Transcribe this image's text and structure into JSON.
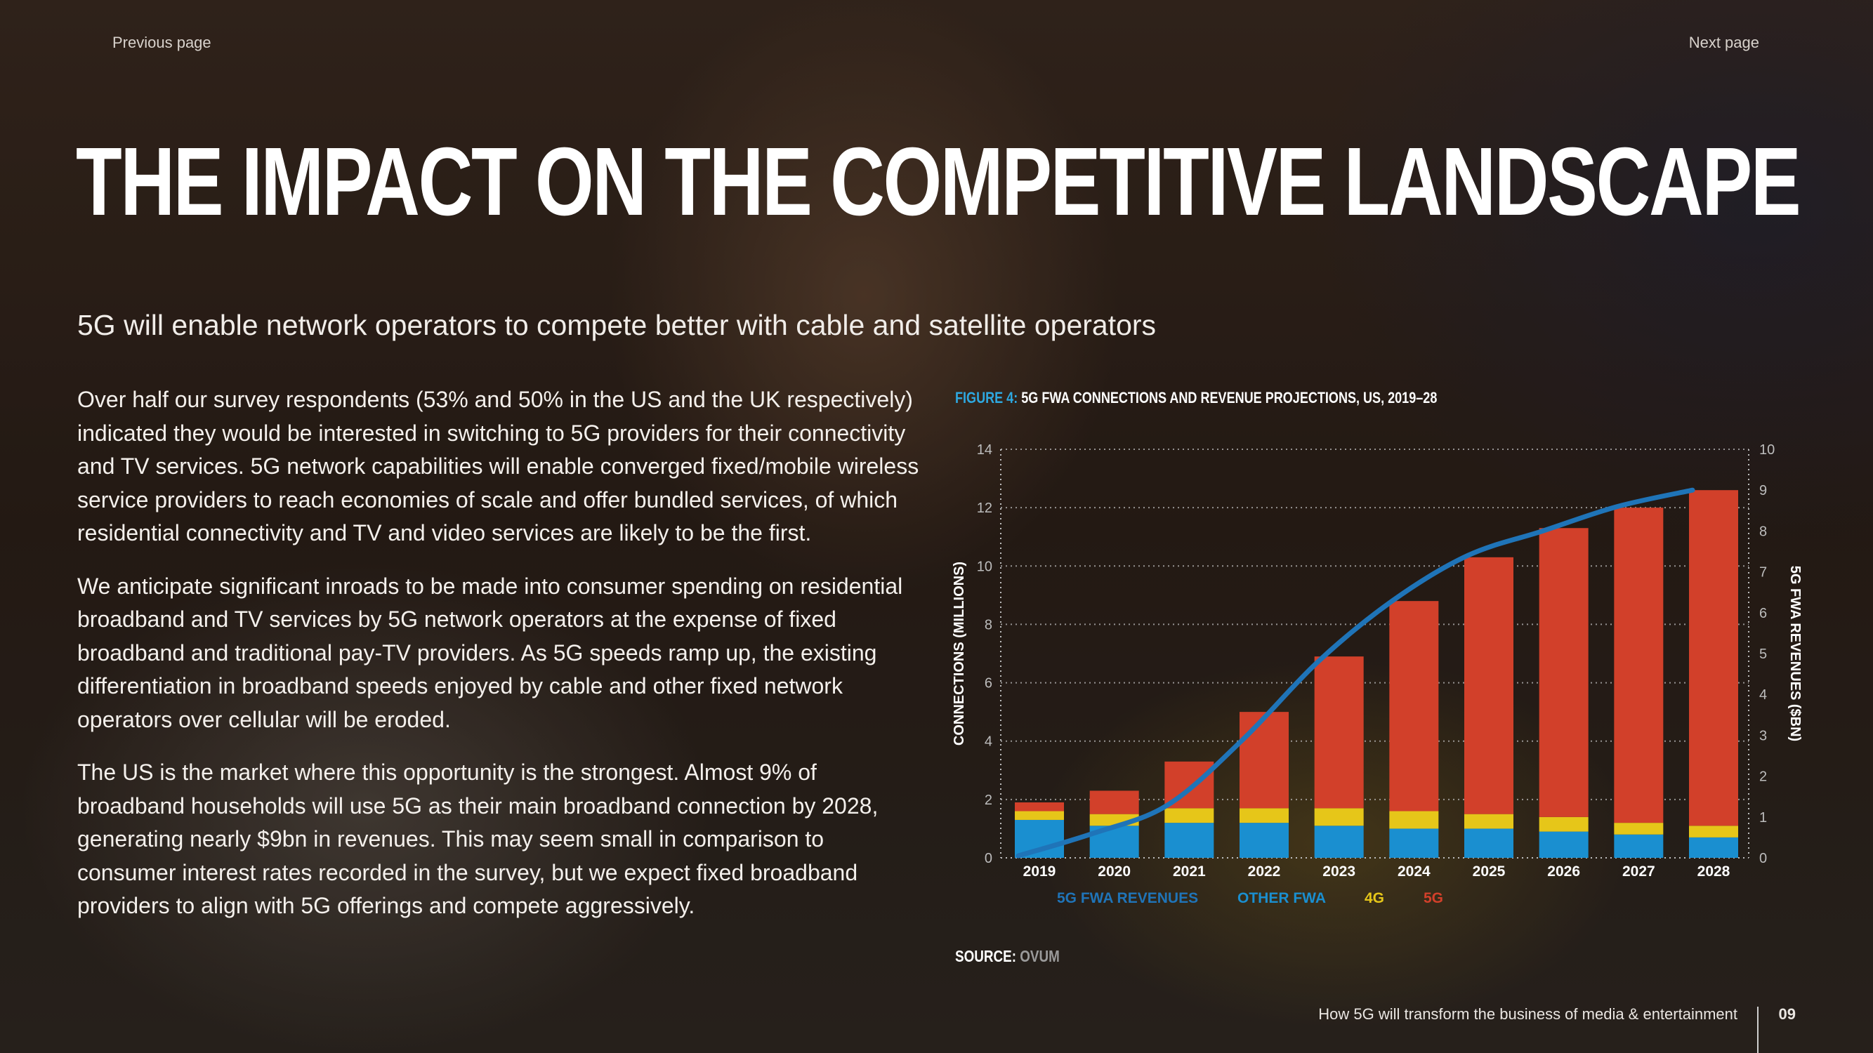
{
  "nav": {
    "previous": "Previous page",
    "next": "Next page"
  },
  "title": "THE IMPACT ON THE COMPETITIVE LANDSCAPE",
  "subtitle": "5G will enable network operators to compete better with cable and satellite operators",
  "paragraphs": [
    "Over half our survey respondents (53% and 50% in the US and the UK respectively) indicated they would be interested in switching to 5G providers for their connectivity and TV services. 5G network capabilities will enable converged fixed/mobile wireless service providers to reach economies of scale and offer bundled services, of which residential connectivity and TV and video services are likely to be the first.",
    "We anticipate significant inroads to be made into consumer spending on residential broadband and TV services by 5G network operators at the expense of fixed broadband and traditional pay-TV providers. As 5G speeds ramp up, the existing differentiation in broadband speeds enjoyed by cable and other fixed network operators over cellular will be eroded.",
    "The US is the market where this opportunity is the strongest. Almost 9% of broadband households will use 5G as their main broadband connection by 2028, generating nearly $9bn in revenues. This may seem small in comparison to consumer interest rates recorded in the survey, but we expect fixed broadband providers to align with 5G offerings and compete aggressively."
  ],
  "figure": {
    "label": "FIGURE 4:",
    "title": "5G FWA CONNECTIONS AND REVENUE PROJECTIONS, US, 2019–28"
  },
  "source": {
    "label": "SOURCE:",
    "value": "OVUM"
  },
  "footer": {
    "text": "How 5G will transform the business of media & entertainment",
    "page": "09"
  },
  "colors": {
    "other_fwa": "#1a8fd0",
    "g4": "#e6c619",
    "g5": "#d2402a",
    "revenue_line": "#1f74b8",
    "figure_label": "#2ea8e0"
  },
  "chart_data": {
    "type": "bar",
    "stacked": true,
    "categories": [
      "2019",
      "2020",
      "2021",
      "2022",
      "2023",
      "2024",
      "2025",
      "2026",
      "2027",
      "2028"
    ],
    "series": [
      {
        "name": "OTHER FWA",
        "values": [
          1.3,
          1.1,
          1.2,
          1.2,
          1.1,
          1.0,
          1.0,
          0.9,
          0.8,
          0.7
        ]
      },
      {
        "name": "4G",
        "values": [
          0.3,
          0.4,
          0.5,
          0.5,
          0.6,
          0.6,
          0.5,
          0.5,
          0.4,
          0.4
        ]
      },
      {
        "name": "5G",
        "values": [
          0.3,
          0.8,
          1.6,
          3.3,
          5.2,
          7.2,
          8.8,
          9.9,
          10.8,
          11.5
        ]
      }
    ],
    "line_series": {
      "name": "5G FWA REVENUES",
      "axis": "right",
      "values": [
        0.05,
        0.6,
        1.3,
        2.9,
        4.8,
        6.3,
        7.4,
        8.0,
        8.6,
        9.0
      ]
    },
    "ylabel": "CONNECTIONS (MILLIONS)",
    "ylabel_right": "5G FWA REVENUES ($BN)",
    "ylim": [
      0,
      14
    ],
    "ylim_right": [
      0,
      10
    ],
    "yticks": [
      0,
      2,
      4,
      6,
      8,
      10,
      12,
      14
    ],
    "yticks_right": [
      0,
      1,
      2,
      3,
      4,
      5,
      6,
      7,
      8,
      9,
      10
    ],
    "legend": [
      "5G FWA REVENUES",
      "OTHER FWA",
      "4G",
      "5G"
    ],
    "legend_position": "bottom",
    "grid": true
  }
}
